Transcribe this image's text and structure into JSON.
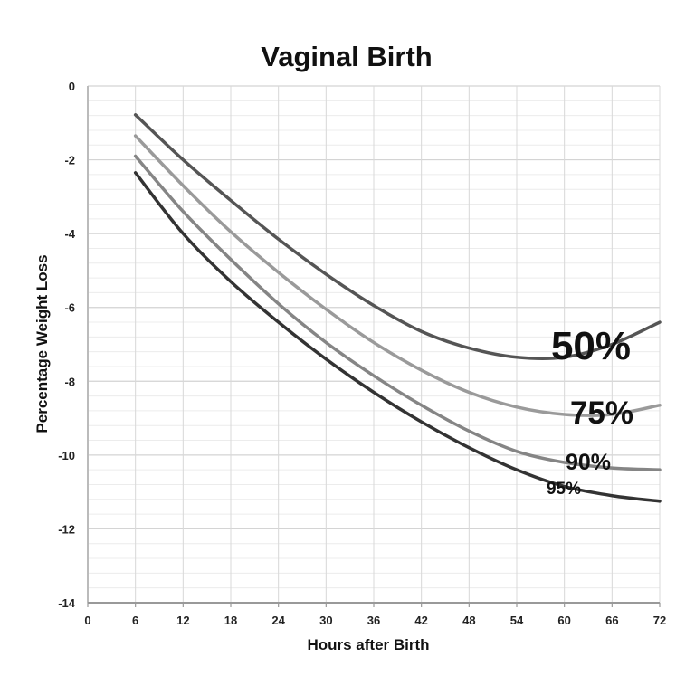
{
  "chart_data": {
    "type": "line",
    "title": "Vaginal Birth",
    "xlabel": "Hours after Birth",
    "ylabel": "Percentage Weight Loss",
    "xlim": [
      0,
      72
    ],
    "ylim": [
      -14,
      0
    ],
    "xticks": [
      0,
      6,
      12,
      18,
      24,
      30,
      36,
      42,
      48,
      54,
      60,
      66,
      72
    ],
    "yticks": [
      0,
      -2,
      -4,
      -6,
      -8,
      -10,
      -12,
      -14
    ],
    "grid": true,
    "minor_y_grid_step": 0.4,
    "x": [
      6,
      12,
      18,
      24,
      30,
      36,
      42,
      48,
      54,
      60,
      66,
      72
    ],
    "series": [
      {
        "name": "50%",
        "color": "#555555",
        "values": [
          -0.78,
          -2.0,
          -3.1,
          -4.15,
          -5.1,
          -5.95,
          -6.65,
          -7.1,
          -7.35,
          -7.35,
          -7.0,
          -6.4
        ]
      },
      {
        "name": "75%",
        "color": "#9a9a9a",
        "values": [
          -1.35,
          -2.7,
          -3.95,
          -5.05,
          -6.05,
          -6.95,
          -7.7,
          -8.3,
          -8.7,
          -8.9,
          -8.9,
          -8.65
        ]
      },
      {
        "name": "90%",
        "color": "#858585",
        "values": [
          -1.9,
          -3.4,
          -4.7,
          -5.9,
          -6.95,
          -7.85,
          -8.65,
          -9.35,
          -9.9,
          -10.2,
          -10.35,
          -10.4
        ]
      },
      {
        "name": "95%",
        "color": "#333333",
        "values": [
          -2.35,
          -4.0,
          -5.3,
          -6.4,
          -7.4,
          -8.3,
          -9.1,
          -9.8,
          -10.4,
          -10.85,
          -11.1,
          -11.25
        ]
      }
    ]
  }
}
